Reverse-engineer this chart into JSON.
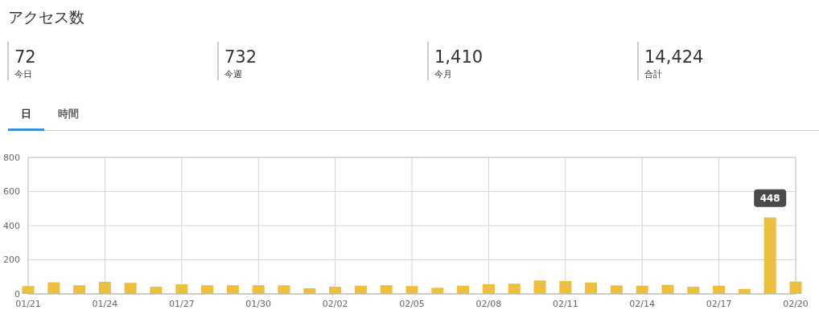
{
  "chart_data": [
    {
      "type": "other",
      "title": "アクセス数",
      "annotations": [
        "72",
        "今日",
        "732",
        "今週",
        "1,410",
        "今月",
        "14,424",
        "合計",
        "日",
        "時間"
      ]
    },
    {
      "type": "bar",
      "categories": [
        "01/21",
        null,
        null,
        "01/24",
        null,
        null,
        "01/27",
        null,
        null,
        "01/30",
        null,
        null,
        "02/02",
        null,
        null,
        "02/05",
        null,
        null,
        "02/08",
        null,
        null,
        "02/11",
        null,
        null,
        "02/14",
        null,
        null,
        "02/17",
        null,
        null,
        "02/20"
      ],
      "values": [
        46,
        68,
        51,
        71,
        65,
        42,
        56,
        51,
        51,
        51,
        51,
        33,
        42,
        48,
        51,
        46,
        36,
        48,
        57,
        60,
        79,
        76,
        67,
        50,
        48,
        53,
        42,
        48,
        29,
        448,
        72
      ],
      "value_labels": [
        null,
        null,
        null,
        null,
        null,
        null,
        null,
        null,
        null,
        null,
        null,
        null,
        null,
        null,
        null,
        null,
        null,
        null,
        null,
        null,
        null,
        null,
        null,
        null,
        null,
        null,
        null,
        null,
        null,
        "448",
        null
      ],
      "color": "#ecc03f",
      "ylim": [
        0,
        800
      ],
      "yticks": [
        0,
        200,
        400,
        600,
        800
      ],
      "grid": true
    }
  ]
}
